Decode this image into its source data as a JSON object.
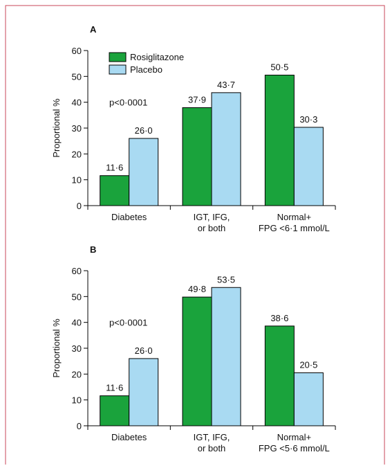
{
  "chart_data": [
    {
      "type": "bar",
      "title": "A",
      "y_label": "Proportional %",
      "annotation": "p<0·0001",
      "categories": [
        "Diabetes",
        "IGT, IFG,\nor both",
        "Normal+\nFPG <6·1 mmol/L"
      ],
      "series": [
        {
          "name": "Rosiglitazone",
          "color": "#1aa33c",
          "values": [
            11.6,
            37.9,
            50.5
          ],
          "value_labels": [
            "11·6",
            "37·9",
            "50·5"
          ]
        },
        {
          "name": "Placebo",
          "color": "#a9daf2",
          "values": [
            26.0,
            43.7,
            30.3
          ],
          "value_labels": [
            "26·0",
            "43·7",
            "30·3"
          ]
        }
      ],
      "ylim": [
        0,
        60
      ],
      "yticks": [
        0,
        10,
        20,
        30,
        40,
        50,
        60
      ],
      "legend": "upper left"
    },
    {
      "type": "bar",
      "title": "B",
      "y_label": "Proportional %",
      "annotation": "p<0·0001",
      "categories": [
        "Diabetes",
        "IGT, IFG,\nor both",
        "Normal+\nFPG <5·6 mmol/L"
      ],
      "series": [
        {
          "name": "Rosiglitazone",
          "color": "#1aa33c",
          "values": [
            11.6,
            49.8,
            38.6
          ],
          "value_labels": [
            "11·6",
            "49·8",
            "38·6"
          ]
        },
        {
          "name": "Placebo",
          "color": "#a9daf2",
          "values": [
            26.0,
            53.5,
            20.5
          ],
          "value_labels": [
            "26·0",
            "53·5",
            "20·5"
          ]
        }
      ],
      "ylim": [
        0,
        60
      ],
      "yticks": [
        0,
        10,
        20,
        30,
        40,
        50,
        60
      ]
    }
  ]
}
